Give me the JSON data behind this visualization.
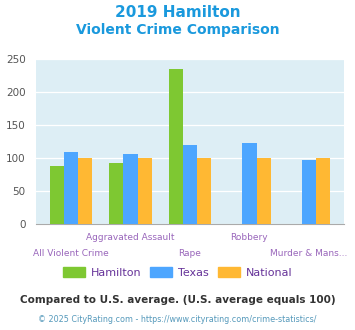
{
  "title_line1": "2019 Hamilton",
  "title_line2": "Violent Crime Comparison",
  "categories_top": [
    "Aggravated Assault",
    "Robbery"
  ],
  "categories_bottom": [
    "All Violent Crime",
    "Rape",
    "Murder & Mans..."
  ],
  "categories_all": [
    "All Violent Crime",
    "Aggravated Assault",
    "Rape",
    "Robbery",
    "Murder & Mans..."
  ],
  "hamilton": [
    88,
    93,
    235,
    0,
    0
  ],
  "texas": [
    110,
    106,
    120,
    123,
    97
  ],
  "national": [
    100,
    100,
    100,
    100,
    100
  ],
  "hamilton_color": "#7ec832",
  "texas_color": "#4da6ff",
  "national_color": "#ffb833",
  "ylim": [
    0,
    250
  ],
  "yticks": [
    0,
    50,
    100,
    150,
    200,
    250
  ],
  "background_color": "#ddeef5",
  "title_color": "#1a99dd",
  "xlabel_color": "#9966bb",
  "legend_label_color": "#663399",
  "legend_labels": [
    "Hamilton",
    "Texas",
    "National"
  ],
  "footnote1": "Compared to U.S. average. (U.S. average equals 100)",
  "footnote2": "© 2025 CityRating.com - https://www.cityrating.com/crime-statistics/",
  "footnote1_color": "#333333",
  "footnote2_color": "#5599bb"
}
